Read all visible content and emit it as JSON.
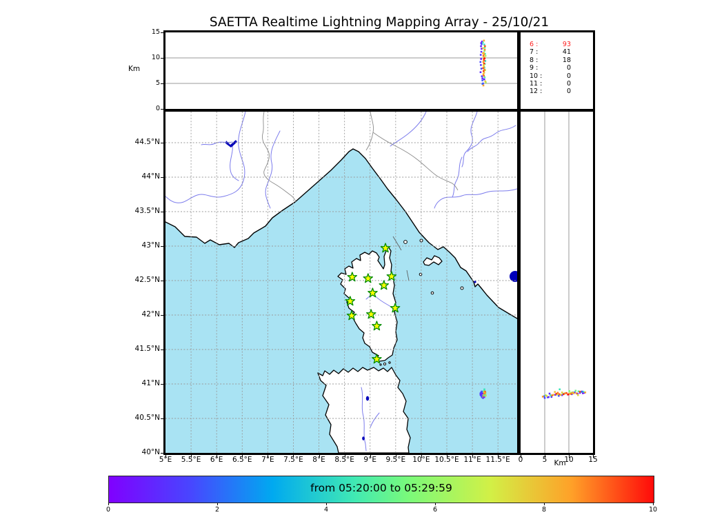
{
  "colors": {
    "sea": "#a9e3f3",
    "coast": "#000000",
    "river": "#7b7bec",
    "border": "#8a8a8a",
    "grid": "#999999",
    "lake": "#0000bb",
    "star_fill": "#ffff00",
    "star_stroke": "#008a00",
    "highlight": "#ff2020",
    "point_size": 2.6
  },
  "chart_data": {
    "type": "scatter",
    "figure_title": "SAETTA Realtime Lightning Mapping Array - 25/10/21",
    "colorbar": {
      "label": "from 05:20:00 to 05:29:59",
      "colormap": "rainbow",
      "lim": [
        0,
        10
      ],
      "ticks": [
        [
          0,
          "0"
        ],
        [
          2,
          "2"
        ],
        [
          4,
          "4"
        ],
        [
          6,
          "6"
        ],
        [
          8,
          "8"
        ],
        [
          10,
          "10"
        ]
      ]
    },
    "counts": [
      {
        "label": "6",
        "value": "93",
        "highlight": true
      },
      {
        "label": "7",
        "value": "41",
        "highlight": false
      },
      {
        "label": "8",
        "value": "18",
        "highlight": false
      },
      {
        "label": "9",
        "value": "0",
        "highlight": false
      },
      {
        "label": "10",
        "value": "0",
        "highlight": false
      },
      {
        "label": "11",
        "value": "0",
        "highlight": false
      },
      {
        "label": "12",
        "value": "0",
        "highlight": false
      }
    ],
    "axes": {
      "alt_lon": {
        "ylabel": "Km",
        "ylim": [
          0,
          15
        ],
        "yticks": [
          [
            15,
            "15"
          ],
          [
            10,
            "10"
          ],
          [
            5,
            "5"
          ],
          [
            0,
            "0"
          ]
        ],
        "grid_y": [
          5,
          10
        ]
      },
      "map": {
        "xlim": [
          5,
          11.875
        ],
        "ylim": [
          40,
          44.95
        ],
        "xticks": [
          [
            5,
            "5°E"
          ],
          [
            5.5,
            "5.5°E"
          ],
          [
            6,
            "6°E"
          ],
          [
            6.5,
            "6.5°E"
          ],
          [
            7,
            "7°E"
          ],
          [
            7.5,
            "7.5°E"
          ],
          [
            8,
            "8°E"
          ],
          [
            8.5,
            "8.5°E"
          ],
          [
            9,
            "9°E"
          ],
          [
            9.5,
            "9.5°E"
          ],
          [
            10,
            "10°E"
          ],
          [
            10.5,
            "10.5°E"
          ],
          [
            11,
            "11°E"
          ],
          [
            11.5,
            "11.5°E"
          ]
        ],
        "yticks": [
          [
            40,
            "40°N"
          ],
          [
            40.5,
            "40.5°N"
          ],
          [
            41,
            "41°N"
          ],
          [
            41.5,
            "41.5°N"
          ],
          [
            42,
            "42°N"
          ],
          [
            42.5,
            "42.5°N"
          ],
          [
            43,
            "43°N"
          ],
          [
            43.5,
            "43.5°N"
          ],
          [
            44,
            "44°N"
          ],
          [
            44.5,
            "44.5°N"
          ]
        ]
      },
      "alt_lat": {
        "xlabel": "Km",
        "xlim": [
          0,
          15
        ],
        "xticks": [
          [
            0,
            "0"
          ],
          [
            5,
            "5"
          ],
          [
            10,
            "10"
          ],
          [
            15,
            "15"
          ]
        ],
        "grid_x": [
          5,
          10
        ]
      }
    },
    "stations_lon_lat": [
      [
        9.3,
        42.97
      ],
      [
        8.65,
        42.55
      ],
      [
        8.96,
        42.53
      ],
      [
        9.42,
        42.56
      ],
      [
        9.27,
        42.43
      ],
      [
        9.05,
        42.32
      ],
      [
        8.61,
        42.2
      ],
      [
        9.49,
        42.1
      ],
      [
        9.02,
        42.01
      ],
      [
        8.64,
        41.99
      ],
      [
        9.13,
        41.84
      ],
      [
        9.13,
        41.36
      ]
    ],
    "sources_lon_lat_altkm_time": [
      [
        11.172,
        40.866,
        12.9,
        0.4
      ],
      [
        11.168,
        40.871,
        12.3,
        0.7
      ],
      [
        11.18,
        40.858,
        11.8,
        0.5
      ],
      [
        11.175,
        40.877,
        11.2,
        1.0
      ],
      [
        11.163,
        40.852,
        10.6,
        1.2
      ],
      [
        11.17,
        40.846,
        9.8,
        0.8
      ],
      [
        11.158,
        40.862,
        9.2,
        1.5
      ],
      [
        11.166,
        40.838,
        8.6,
        1.1
      ],
      [
        11.176,
        40.828,
        7.9,
        1.6
      ],
      [
        11.16,
        40.843,
        7.2,
        0.9
      ],
      [
        11.186,
        40.812,
        6.4,
        1.3
      ],
      [
        11.196,
        40.806,
        5.6,
        1.8
      ],
      [
        11.208,
        40.797,
        5.0,
        1.4
      ],
      [
        11.232,
        40.884,
        12.6,
        4.2
      ],
      [
        11.241,
        40.892,
        12.0,
        4.8
      ],
      [
        11.236,
        40.902,
        11.4,
        5.2
      ],
      [
        11.247,
        40.878,
        10.8,
        4.5
      ],
      [
        11.228,
        40.896,
        10.1,
        5.5
      ],
      [
        11.252,
        40.868,
        9.4,
        4.0
      ],
      [
        11.243,
        40.858,
        8.8,
        5.0
      ],
      [
        11.235,
        40.922,
        8.1,
        4.4
      ],
      [
        11.258,
        40.872,
        10.4,
        6.3
      ],
      [
        11.25,
        40.846,
        7.6,
        6.7
      ],
      [
        11.262,
        40.836,
        5.2,
        6.1
      ],
      [
        11.222,
        40.864,
        11.0,
        8.2
      ],
      [
        11.228,
        40.872,
        10.7,
        8.6
      ],
      [
        11.216,
        40.856,
        10.4,
        9.0
      ],
      [
        11.233,
        40.86,
        10.1,
        7.8
      ],
      [
        11.221,
        40.848,
        9.8,
        8.9
      ],
      [
        11.227,
        40.868,
        9.5,
        9.4
      ],
      [
        11.214,
        40.864,
        9.2,
        8.4
      ],
      [
        11.23,
        40.852,
        8.9,
        9.7
      ],
      [
        11.219,
        40.876,
        8.6,
        7.6
      ],
      [
        11.226,
        40.842,
        8.3,
        8.0
      ],
      [
        11.212,
        40.852,
        8.0,
        9.2
      ],
      [
        11.234,
        40.872,
        7.7,
        8.8
      ],
      [
        11.22,
        40.858,
        7.4,
        9.5
      ],
      [
        11.229,
        40.884,
        7.1,
        7.9
      ],
      [
        11.215,
        40.842,
        6.8,
        8.3
      ],
      [
        11.224,
        40.834,
        6.5,
        9.1
      ],
      [
        11.238,
        40.848,
        9.9,
        9.9
      ],
      [
        11.208,
        40.87,
        10.9,
        8.1
      ],
      [
        11.242,
        40.864,
        11.6,
        8.7
      ],
      [
        11.21,
        40.838,
        11.9,
        7.5
      ],
      [
        11.246,
        40.888,
        12.3,
        9.3
      ],
      [
        11.198,
        40.822,
        4.9,
        1.9
      ],
      [
        11.215,
        40.816,
        4.6,
        8.5
      ],
      [
        11.232,
        40.81,
        5.8,
        0.6
      ],
      [
        11.188,
        40.872,
        13.2,
        0.3
      ],
      [
        11.205,
        40.888,
        13.0,
        4.6
      ],
      [
        11.252,
        40.826,
        5.4,
        7.7
      ],
      [
        11.182,
        40.89,
        12.7,
        1.7
      ],
      [
        11.226,
        40.878,
        13.4,
        8.15
      ],
      [
        11.24,
        40.836,
        6.2,
        4.9
      ],
      [
        11.196,
        40.86,
        6.0,
        0.95
      ]
    ]
  }
}
